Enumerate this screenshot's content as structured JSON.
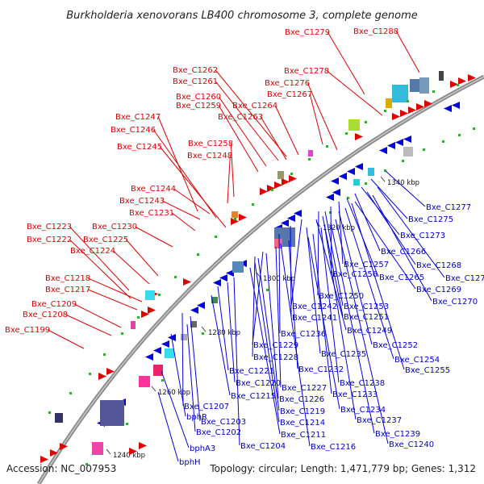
{
  "title": "Burkholderia xenovorans LB400 chromosome 3, complete genome",
  "footer": {
    "accession": "Accession: NC_007953",
    "summary": "Topology: circular; Length: 1,471,779 bp; Genes: 1,312"
  },
  "colors": {
    "forward": "#e00000",
    "reverse": "#0000dd",
    "backbone": "#888888",
    "tick": "#33aa33"
  },
  "kbp_labels": [
    "1240 kbp",
    "1260 kbp",
    "1280 kbp",
    "1300 kbp",
    "1320 kbp",
    "1340 kbp"
  ],
  "red_labels": [
    "Bxe_C1279",
    "Bxe_C1288",
    "Bxe_C1278",
    "Bxe_C1262",
    "Bxe_C1261",
    "Bxe_C1276",
    "Bxe_C1267",
    "Bxe_C1260",
    "Bxe_C1259",
    "Bxe_C1264",
    "Bxe_C1263",
    "Bxe_C1247",
    "Bxe_C1246",
    "Bxe_C1245",
    "Bxe_C1258",
    "Bxe_C1248",
    "Bxe_C1244",
    "Bxe_C1243",
    "Bxe_C1231",
    "Bxe_C1230",
    "Bxe_C1223",
    "Bxe_C1222",
    "Bxe_C1225",
    "Bxe_C1224",
    "Bxe_C1218",
    "Bxe_C1217",
    "Bxe_C1209",
    "Bxe_C1208",
    "Bxe_C1199"
  ],
  "blue_labels": [
    "Bxe_C1277",
    "Bxe_C1275",
    "Bxe_C1273",
    "Bxe_C1266",
    "Bxe_C1257",
    "Bxe_C1268",
    "Bxe_C1256",
    "Bxe_C1265",
    "Bxe_C1274",
    "Bxe_C1269",
    "Bxe_C1250",
    "Bxe_C1270",
    "Bxe_C1242",
    "Bxe_C1253",
    "Bxe_C1241",
    "Bxe_C1251",
    "Bxe_C1249",
    "Bxe_C1236",
    "Bxe_C1229",
    "Bxe_C1252",
    "Bxe_C1235",
    "Bxe_C1228",
    "Bxe_C1254",
    "Bxe_C1232",
    "Bxe_C1255",
    "Bxe_C1221",
    "Bxe_C1238",
    "Bxe_C1220",
    "Bxe_C1227",
    "Bxe_C1233",
    "Bxe_C1215",
    "Bxe_C1226",
    "Bxe_C1207",
    "Bxe_C1219",
    "Bxe_C1234",
    "bphR",
    "Bxe_C1214",
    "Bxe_C1237",
    "Bxe_C1203",
    "Bxe_C1202",
    "Bxe_C1211",
    "Bxe_C1239",
    "bphA3",
    "Bxe_C1204",
    "Bxe_C1216",
    "Bxe_C1240",
    "bphH"
  ]
}
